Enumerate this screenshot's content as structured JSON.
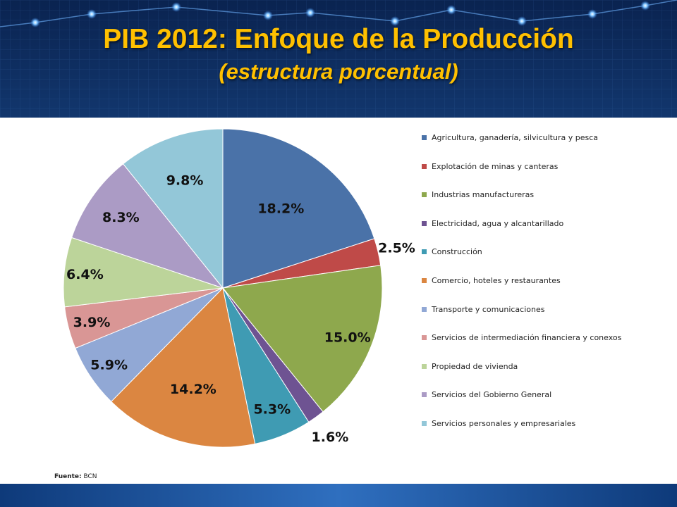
{
  "slide": {
    "title": "PIB 2012: Enfoque de la Producción",
    "subtitle": "(estructura porcentual)",
    "source_label": "Fuente:",
    "source_value": "BCN"
  },
  "colors": {
    "background": "#0c2d63",
    "title": "#ffc000"
  },
  "chart_data": {
    "type": "pie",
    "title": "",
    "legend_position": "right",
    "categories": [
      "Agricultura, ganadería, silvicultura y pesca",
      "Explotación de minas y canteras",
      "Industrias manufactureras",
      "Electricidad, agua y alcantarillado",
      "Construcción",
      "Comercio, hoteles y restaurantes",
      "Transporte y comunicaciones",
      "Servicios de intermediación financiera y conexos",
      "Propiedad de vivienda",
      "Servicios del Gobierno General",
      "Servicios personales y empresariales"
    ],
    "values": [
      18.2,
      2.5,
      15.0,
      1.6,
      5.3,
      14.2,
      5.9,
      3.9,
      6.4,
      8.3,
      9.8
    ],
    "labels": [
      "18.2%",
      "2.5%",
      "15.0%",
      "1.6%",
      "5.3%",
      "14.2%",
      "5.9%",
      "3.9%",
      "6.4%",
      "8.3%",
      "9.8%"
    ],
    "colors": [
      "#4a72a8",
      "#bf4a48",
      "#8ea84d",
      "#6e5392",
      "#3f9bb3",
      "#db8641",
      "#91a8d5",
      "#d99695",
      "#bcd49a",
      "#ab9bc5",
      "#93c7d8"
    ]
  }
}
